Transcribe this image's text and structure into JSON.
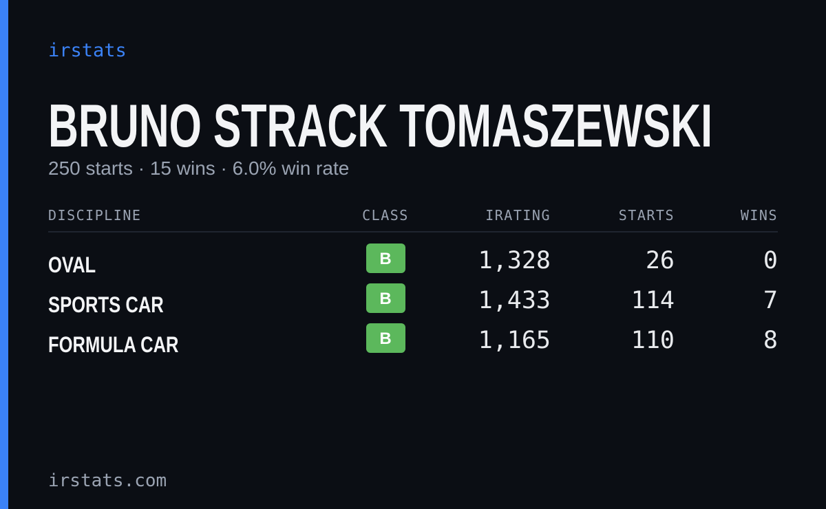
{
  "brand": "irstats",
  "title": "BRUNO STRACK TOMASZEWSKI",
  "subtitle": "250 starts · 15 wins · 6.0% win rate",
  "table": {
    "headers": [
      "DISCIPLINE",
      "CLASS",
      "IRATING",
      "STARTS",
      "WINS"
    ],
    "rows": [
      [
        "OVAL",
        "B",
        "1,328",
        "26",
        "0"
      ],
      [
        "SPORTS CAR",
        "B",
        "1,433",
        "114",
        "7"
      ],
      [
        "FORMULA CAR",
        "B",
        "1,165",
        "110",
        "8"
      ]
    ]
  },
  "footer": "irstats.com"
}
